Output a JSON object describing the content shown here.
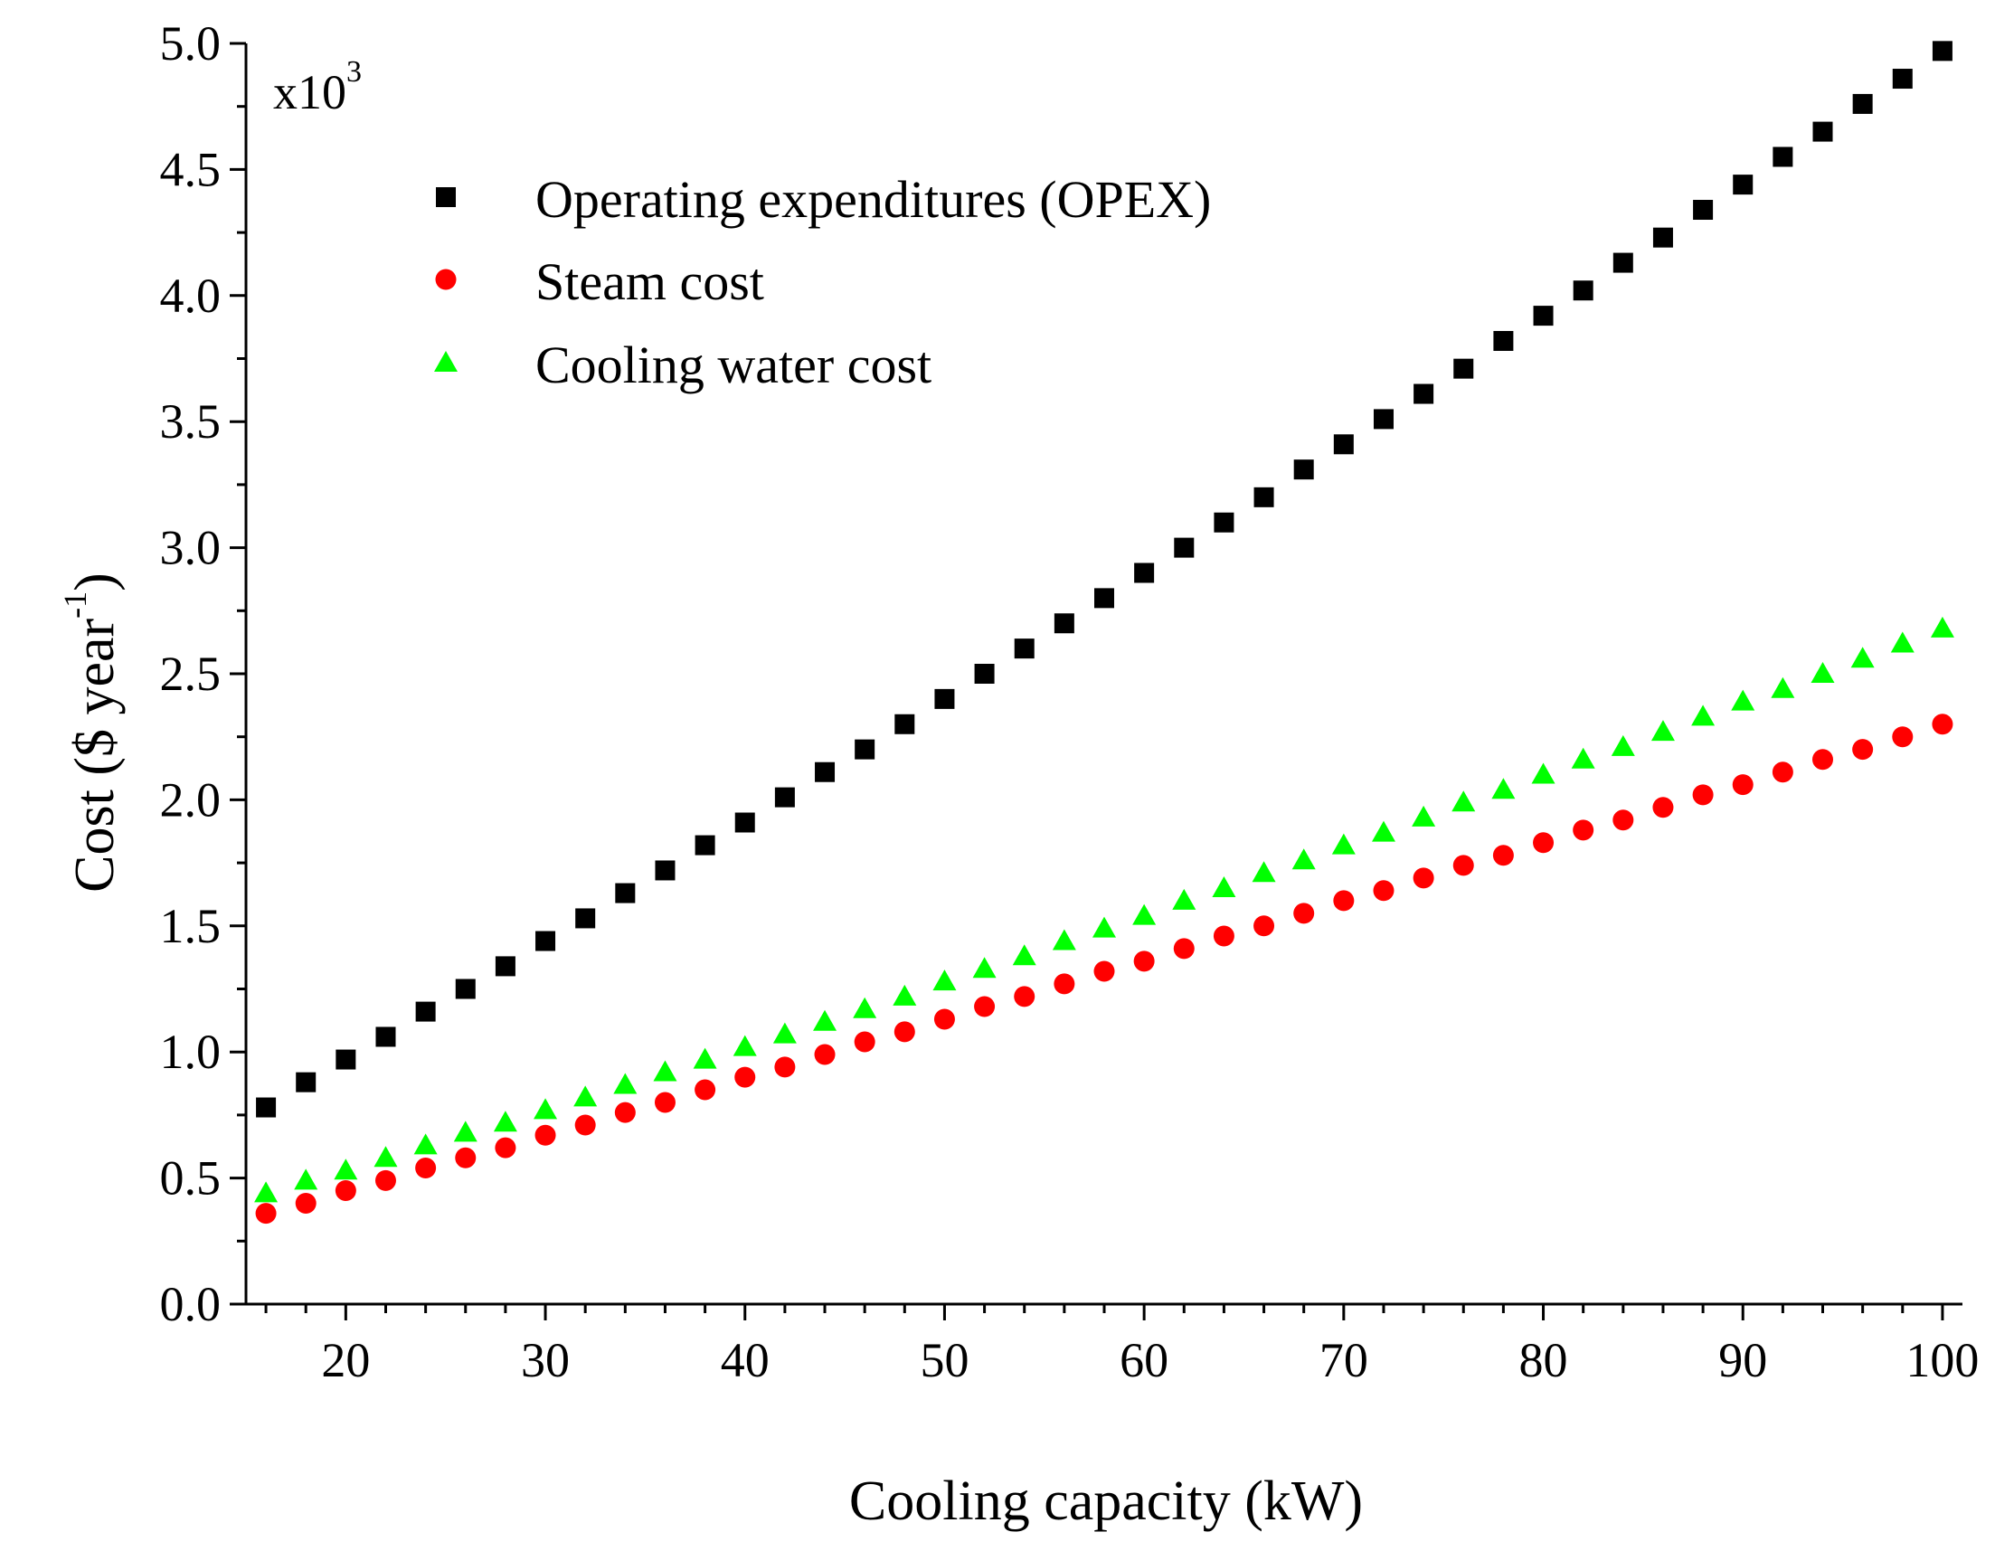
{
  "chart_data": {
    "type": "scatter",
    "title": "",
    "xlabel": "Cooling capacity (kW)",
    "ylabel": {
      "prefix": "Cost ($ year",
      "superscript": "-1",
      "suffix": ")"
    },
    "y_multiplier": {
      "base": "x10",
      "exponent": "3"
    },
    "xlim": [
      15,
      101
    ],
    "ylim": [
      0,
      5.0
    ],
    "x_ticks": [
      20,
      30,
      40,
      50,
      60,
      70,
      80,
      90,
      100
    ],
    "x_tick_labels": [
      "20",
      "30",
      "40",
      "50",
      "60",
      "70",
      "80",
      "90",
      "100"
    ],
    "y_ticks": [
      0,
      0.5,
      1.0,
      1.5,
      2.0,
      2.5,
      3.0,
      3.5,
      4.0,
      4.5,
      5.0
    ],
    "y_tick_labels": [
      "0.0",
      "0.5",
      "1.0",
      "1.5",
      "2.0",
      "2.5",
      "3.0",
      "3.5",
      "4.0",
      "4.5",
      "5.0"
    ],
    "grid": false,
    "legend_position": "top-left",
    "x": [
      16,
      18,
      20,
      22,
      24,
      26,
      28,
      30,
      32,
      34,
      36,
      38,
      40,
      42,
      44,
      46,
      48,
      50,
      52,
      54,
      56,
      58,
      60,
      62,
      64,
      66,
      68,
      70,
      72,
      74,
      76,
      78,
      80,
      82,
      84,
      86,
      88,
      90,
      92,
      94,
      96,
      98,
      100
    ],
    "series": [
      {
        "name": "Operating expenditures (OPEX)",
        "marker": "square",
        "color": "#000000",
        "values": [
          0.78,
          0.88,
          0.97,
          1.06,
          1.16,
          1.25,
          1.34,
          1.44,
          1.53,
          1.63,
          1.72,
          1.82,
          1.91,
          2.01,
          2.11,
          2.2,
          2.3,
          2.4,
          2.5,
          2.6,
          2.7,
          2.8,
          2.9,
          3.0,
          3.1,
          3.2,
          3.31,
          3.41,
          3.51,
          3.61,
          3.71,
          3.82,
          3.92,
          4.02,
          4.13,
          4.23,
          4.34,
          4.44,
          4.55,
          4.65,
          4.76,
          4.86,
          4.97
        ]
      },
      {
        "name": "Steam cost",
        "marker": "circle",
        "color": "#ff0000",
        "values": [
          0.36,
          0.4,
          0.45,
          0.49,
          0.54,
          0.58,
          0.62,
          0.67,
          0.71,
          0.76,
          0.8,
          0.85,
          0.9,
          0.94,
          0.99,
          1.04,
          1.08,
          1.13,
          1.18,
          1.22,
          1.27,
          1.32,
          1.36,
          1.41,
          1.46,
          1.5,
          1.55,
          1.6,
          1.64,
          1.69,
          1.74,
          1.78,
          1.83,
          1.88,
          1.92,
          1.97,
          2.02,
          2.06,
          2.11,
          2.16,
          2.2,
          2.25,
          2.3
        ]
      },
      {
        "name": "Cooling water cost",
        "marker": "triangle",
        "color": "#00ff00",
        "values": [
          0.44,
          0.49,
          0.53,
          0.58,
          0.63,
          0.68,
          0.72,
          0.77,
          0.82,
          0.87,
          0.92,
          0.97,
          1.02,
          1.07,
          1.12,
          1.17,
          1.22,
          1.28,
          1.33,
          1.38,
          1.44,
          1.49,
          1.54,
          1.6,
          1.65,
          1.71,
          1.76,
          1.82,
          1.87,
          1.93,
          1.99,
          2.04,
          2.1,
          2.16,
          2.21,
          2.27,
          2.33,
          2.39,
          2.44,
          2.5,
          2.56,
          2.62,
          2.68
        ]
      }
    ]
  }
}
